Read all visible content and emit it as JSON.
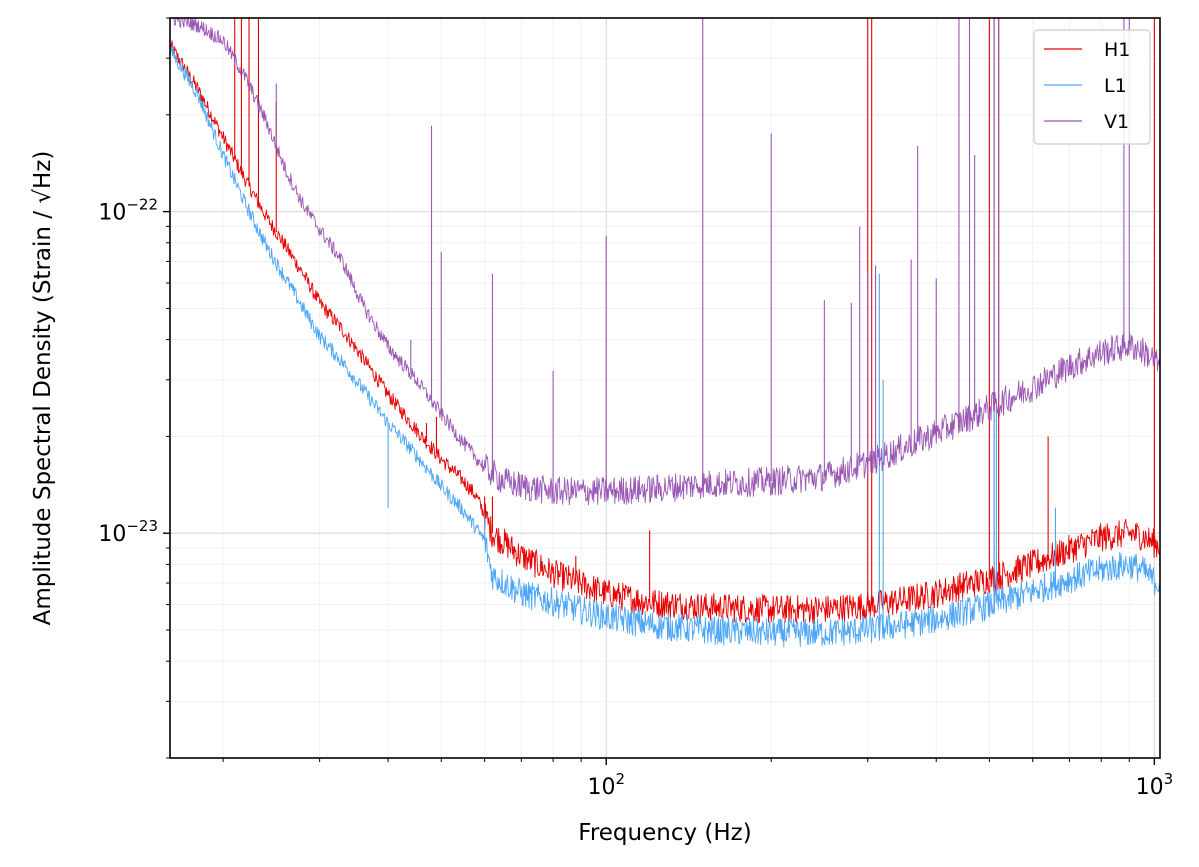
{
  "chart_data": {
    "type": "line",
    "xlabel": "Frequency (Hz)",
    "ylabel": "Amplitude Spectral Density (Strain / √Hz)",
    "xscale": "log",
    "yscale": "log",
    "xlim": [
      16,
      1024
    ],
    "ylim": [
      2e-24,
      4e-22
    ],
    "grid": true,
    "legend_position": "top-right",
    "x_ticks": [
      {
        "value": 100,
        "base": "10",
        "exp": "2"
      },
      {
        "value": 1000,
        "base": "10",
        "exp": "3"
      }
    ],
    "y_ticks": [
      {
        "value": 1e-22,
        "base": "10",
        "exp": "−22"
      },
      {
        "value": 1e-23,
        "base": "10",
        "exp": "−23"
      }
    ],
    "series": [
      {
        "name": "H1",
        "color": "#e80000",
        "points": [
          [
            16,
            3.3e-22
          ],
          [
            18,
            2.4e-22
          ],
          [
            20,
            1.7e-22
          ],
          [
            22,
            1.25e-22
          ],
          [
            24,
            9.6e-23
          ],
          [
            26,
            7.8e-23
          ],
          [
            28,
            6.4e-23
          ],
          [
            30,
            5.2e-23
          ],
          [
            33,
            4.3e-23
          ],
          [
            36,
            3.5e-23
          ],
          [
            40,
            2.7e-23
          ],
          [
            45,
            2.1e-23
          ],
          [
            50,
            1.7e-23
          ],
          [
            55,
            1.45e-23
          ],
          [
            58,
            1.3e-23
          ],
          [
            62,
            1e-23
          ],
          [
            70,
            8.5e-24
          ],
          [
            80,
            7.5e-24
          ],
          [
            100,
            6.5e-24
          ],
          [
            120,
            6.1e-24
          ],
          [
            150,
            5.9e-24
          ],
          [
            200,
            5.8e-24
          ],
          [
            250,
            5.8e-24
          ],
          [
            300,
            5.95e-24
          ],
          [
            350,
            6.2e-24
          ],
          [
            400,
            6.5e-24
          ],
          [
            450,
            6.9e-24
          ],
          [
            500,
            7.2e-24
          ],
          [
            600,
            8e-24
          ],
          [
            700,
            8.9e-24
          ],
          [
            800,
            9.7e-24
          ],
          [
            900,
            1e-23
          ],
          [
            950,
            9.8e-24
          ],
          [
            1000,
            9.3e-24
          ],
          [
            1024,
            9.1e-24
          ]
        ],
        "lines": [
          [
            21,
            4e-22
          ],
          [
            21.6,
            4e-22
          ],
          [
            22.3,
            4e-22
          ],
          [
            23.2,
            4e-22
          ],
          [
            25,
            2.2e-22
          ],
          [
            47,
            2.2e-23
          ],
          [
            49,
            2.3e-23
          ],
          [
            60,
            1.3e-23
          ],
          [
            62,
            1.3e-23
          ],
          [
            88,
            8.5e-24
          ],
          [
            120,
            1.02e-23
          ],
          [
            300,
            4e-22
          ],
          [
            305,
            4e-22
          ],
          [
            500,
            4e-22
          ],
          [
            510,
            4e-22
          ],
          [
            520,
            4e-22
          ],
          [
            640,
            2e-23
          ],
          [
            1000,
            4e-22
          ]
        ]
      },
      {
        "name": "L1",
        "color": "#4da6f5",
        "points": [
          [
            16,
            3.2e-22
          ],
          [
            18,
            2.3e-22
          ],
          [
            20,
            1.5e-22
          ],
          [
            22,
            1.05e-22
          ],
          [
            24,
            7.8e-23
          ],
          [
            26,
            6.2e-23
          ],
          [
            28,
            5e-23
          ],
          [
            30,
            4.1e-23
          ],
          [
            33,
            3.4e-23
          ],
          [
            36,
            2.8e-23
          ],
          [
            40,
            2.2e-23
          ],
          [
            45,
            1.75e-23
          ],
          [
            50,
            1.4e-23
          ],
          [
            55,
            1.17e-23
          ],
          [
            58,
            1.03e-23
          ],
          [
            60,
            9.5e-24
          ],
          [
            62,
            7.4e-24
          ],
          [
            70,
            6.5e-24
          ],
          [
            80,
            6.1e-24
          ],
          [
            100,
            5.5e-24
          ],
          [
            120,
            5.2e-24
          ],
          [
            150,
            5e-24
          ],
          [
            200,
            4.9e-24
          ],
          [
            250,
            4.9e-24
          ],
          [
            300,
            5e-24
          ],
          [
            350,
            5.2e-24
          ],
          [
            400,
            5.4e-24
          ],
          [
            450,
            5.7e-24
          ],
          [
            500,
            5.95e-24
          ],
          [
            600,
            6.6e-24
          ],
          [
            700,
            7.2e-24
          ],
          [
            800,
            7.7e-24
          ],
          [
            900,
            8e-24
          ],
          [
            950,
            7.7e-24
          ],
          [
            1000,
            7.1e-24
          ],
          [
            1024,
            7e-24
          ]
        ],
        "lines": [
          [
            40,
            1.2e-23
          ],
          [
            60,
            1.15e-23
          ],
          [
            315,
            6.4e-23
          ],
          [
            320,
            3e-23
          ],
          [
            510,
            5.5e-23
          ],
          [
            515,
            2.5e-23
          ],
          [
            660,
            1.2e-23
          ]
        ]
      },
      {
        "name": "V1",
        "color": "#9b59b6",
        "points": [
          [
            16,
            4e-22
          ],
          [
            18,
            3.8e-22
          ],
          [
            20,
            3.4e-22
          ],
          [
            22,
            2.6e-22
          ],
          [
            24,
            1.9e-22
          ],
          [
            26,
            1.35e-22
          ],
          [
            28,
            1.05e-22
          ],
          [
            30,
            8.8e-23
          ],
          [
            33,
            7e-23
          ],
          [
            36,
            5.1e-23
          ],
          [
            40,
            3.8e-23
          ],
          [
            45,
            3e-23
          ],
          [
            50,
            2.35e-23
          ],
          [
            55,
            1.9e-23
          ],
          [
            60,
            1.6e-23
          ],
          [
            65,
            1.45e-23
          ],
          [
            70,
            1.4e-23
          ],
          [
            80,
            1.35e-23
          ],
          [
            100,
            1.35e-23
          ],
          [
            120,
            1.37e-23
          ],
          [
            150,
            1.42e-23
          ],
          [
            200,
            1.45e-23
          ],
          [
            250,
            1.5e-23
          ],
          [
            300,
            1.65e-23
          ],
          [
            350,
            1.85e-23
          ],
          [
            400,
            2.05e-23
          ],
          [
            450,
            2.25e-23
          ],
          [
            500,
            2.45e-23
          ],
          [
            600,
            2.85e-23
          ],
          [
            700,
            3.3e-23
          ],
          [
            800,
            3.65e-23
          ],
          [
            900,
            3.85e-23
          ],
          [
            950,
            3.7e-23
          ],
          [
            1000,
            3.45e-23
          ],
          [
            1024,
            3.3e-23
          ]
        ],
        "lines": [
          [
            25,
            2.5e-22
          ],
          [
            35,
            5.6e-23
          ],
          [
            44,
            4e-23
          ],
          [
            48,
            1.85e-22
          ],
          [
            50,
            7.5e-23
          ],
          [
            62,
            6.4e-23
          ],
          [
            80,
            3.2e-23
          ],
          [
            100,
            8.4e-23
          ],
          [
            150,
            4e-22
          ],
          [
            200,
            1.75e-22
          ],
          [
            250,
            5.3e-23
          ],
          [
            280,
            5.2e-23
          ],
          [
            290,
            9e-23
          ],
          [
            300,
            6.5e-23
          ],
          [
            310,
            6.8e-23
          ],
          [
            360,
            7.1e-23
          ],
          [
            370,
            1.6e-22
          ],
          [
            400,
            6.2e-23
          ],
          [
            440,
            4e-22
          ],
          [
            460,
            4e-22
          ],
          [
            470,
            1.5e-22
          ],
          [
            510,
            4e-22
          ],
          [
            520,
            4e-22
          ],
          [
            880,
            4e-22
          ],
          [
            900,
            4e-22
          ]
        ]
      }
    ]
  }
}
